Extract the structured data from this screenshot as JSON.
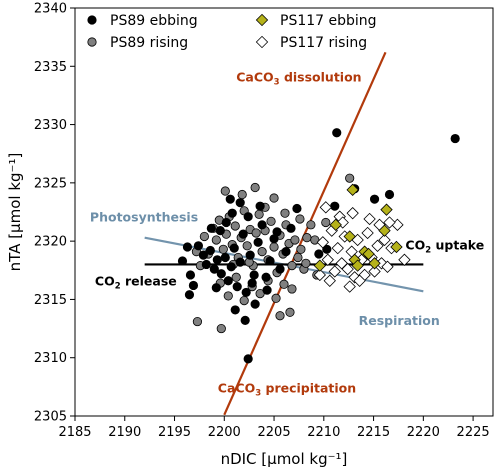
{
  "chart_data": {
    "type": "scatter",
    "xlabel": "nDIC [μmol kg⁻¹]",
    "ylabel": "nTA [μmol kg⁻¹]",
    "xlim": [
      2185,
      2227
    ],
    "ylim": [
      2305,
      2340
    ],
    "xticks": [
      2185,
      2190,
      2195,
      2200,
      2205,
      2210,
      2215,
      2220,
      2225
    ],
    "yticks": [
      2305,
      2310,
      2315,
      2320,
      2325,
      2330,
      2335,
      2340
    ],
    "grid": false,
    "legend": {
      "placement": "top-left",
      "entries": [
        "PS89 ebbing",
        "PS89 rising",
        "PS117 ebbing",
        "PS117 rising"
      ]
    },
    "series": [
      {
        "name": "PS89 ebbing",
        "marker": "circle",
        "color": "#000000",
        "points": [
          [
            2196.3,
            2319.5
          ],
          [
            2195.8,
            2318.3
          ],
          [
            2196.6,
            2317.1
          ],
          [
            2196.9,
            2316.2
          ],
          [
            2196.5,
            2315.4
          ],
          [
            2197.4,
            2319.6
          ],
          [
            2197.9,
            2318.8
          ],
          [
            2198.2,
            2318.0
          ],
          [
            2198.6,
            2319.2
          ],
          [
            2199.0,
            2317.6
          ],
          [
            2199.3,
            2318.4
          ],
          [
            2199.7,
            2317.2
          ],
          [
            2200.1,
            2318.6
          ],
          [
            2200.4,
            2316.6
          ],
          [
            2200.7,
            2317.8
          ],
          [
            2201.0,
            2319.4
          ],
          [
            2201.3,
            2316.1
          ],
          [
            2201.6,
            2318.2
          ],
          [
            2201.9,
            2320.6
          ],
          [
            2202.2,
            2315.6
          ],
          [
            2202.6,
            2318.8
          ],
          [
            2203.0,
            2317.1
          ],
          [
            2203.4,
            2319.9
          ],
          [
            2203.8,
            2321.4
          ],
          [
            2204.2,
            2316.9
          ],
          [
            2204.6,
            2318.3
          ],
          [
            2205.0,
            2320.2
          ],
          [
            2205.6,
            2317.6
          ],
          [
            2206.2,
            2319.1
          ],
          [
            2206.7,
            2321.1
          ],
          [
            2207.3,
            2322.8
          ],
          [
            2200.2,
            2321.6
          ],
          [
            2199.6,
            2320.9
          ],
          [
            2198.7,
            2321.1
          ],
          [
            2200.8,
            2322.4
          ],
          [
            2201.6,
            2323.3
          ],
          [
            2202.4,
            2322.1
          ],
          [
            2203.6,
            2323.0
          ],
          [
            2200.6,
            2323.6
          ],
          [
            2205.3,
            2320.8
          ],
          [
            2209.5,
            2318.9
          ],
          [
            2210.3,
            2319.3
          ],
          [
            2211.1,
            2323.0
          ],
          [
            2211.3,
            2329.3
          ],
          [
            2213.1,
            2324.5
          ],
          [
            2215.1,
            2323.6
          ],
          [
            2216.6,
            2324.0
          ],
          [
            2223.2,
            2328.8
          ],
          [
            2202.4,
            2309.9
          ],
          [
            2202.1,
            2313.2
          ],
          [
            2203.1,
            2314.6
          ],
          [
            2201.1,
            2314.1
          ],
          [
            2199.2,
            2316.0
          ],
          [
            2202.8,
            2316.4
          ],
          [
            2204.3,
            2315.8
          ]
        ]
      },
      {
        "name": "PS89 rising",
        "marker": "circle",
        "color": "#808080",
        "points": [
          [
            2198.9,
            2321.1
          ],
          [
            2199.2,
            2320.1
          ],
          [
            2199.5,
            2321.8
          ],
          [
            2199.9,
            2319.3
          ],
          [
            2200.2,
            2320.6
          ],
          [
            2200.5,
            2322.1
          ],
          [
            2200.8,
            2319.7
          ],
          [
            2201.1,
            2321.3
          ],
          [
            2201.4,
            2318.6
          ],
          [
            2201.7,
            2320.3
          ],
          [
            2202.0,
            2322.6
          ],
          [
            2202.3,
            2319.6
          ],
          [
            2202.6,
            2321.0
          ],
          [
            2202.9,
            2317.9
          ],
          [
            2203.2,
            2320.7
          ],
          [
            2203.5,
            2322.3
          ],
          [
            2203.8,
            2319.1
          ],
          [
            2204.1,
            2320.9
          ],
          [
            2204.4,
            2318.4
          ],
          [
            2204.7,
            2321.7
          ],
          [
            2205.0,
            2319.5
          ],
          [
            2205.3,
            2317.3
          ],
          [
            2205.6,
            2320.5
          ],
          [
            2205.9,
            2318.9
          ],
          [
            2206.2,
            2321.4
          ],
          [
            2206.5,
            2319.8
          ],
          [
            2206.8,
            2317.9
          ],
          [
            2207.1,
            2320.1
          ],
          [
            2207.4,
            2318.6
          ],
          [
            2207.7,
            2319.3
          ],
          [
            2208.0,
            2317.6
          ],
          [
            2208.3,
            2320.3
          ],
          [
            2198.4,
            2318.9
          ],
          [
            2198.0,
            2320.4
          ],
          [
            2197.6,
            2317.9
          ],
          [
            2197.2,
            2319.1
          ],
          [
            2199.6,
            2316.4
          ],
          [
            2200.4,
            2315.3
          ],
          [
            2201.2,
            2316.9
          ],
          [
            2202.0,
            2314.9
          ],
          [
            2202.8,
            2316.1
          ],
          [
            2203.6,
            2315.5
          ],
          [
            2204.4,
            2316.6
          ],
          [
            2205.2,
            2315.1
          ],
          [
            2206.0,
            2316.3
          ],
          [
            2206.8,
            2315.9
          ],
          [
            2205.6,
            2313.6
          ],
          [
            2206.6,
            2313.9
          ],
          [
            2199.7,
            2312.5
          ],
          [
            2197.3,
            2313.1
          ],
          [
            2200.1,
            2324.3
          ],
          [
            2201.8,
            2324.0
          ],
          [
            2203.1,
            2324.6
          ],
          [
            2204.1,
            2322.9
          ],
          [
            2205.0,
            2323.7
          ],
          [
            2206.1,
            2322.4
          ],
          [
            2207.6,
            2321.9
          ],
          [
            2208.7,
            2321.4
          ],
          [
            2208.2,
            2318.1
          ],
          [
            2209.1,
            2320.1
          ],
          [
            2209.3,
            2317.1
          ],
          [
            2212.6,
            2325.4
          ],
          [
            2210.2,
            2321.6
          ],
          [
            2200.9,
            2318.0
          ],
          [
            2202.5,
            2318.2
          ]
        ]
      },
      {
        "name": "PS117 ebbing",
        "marker": "diamond",
        "color": "#b5b21a",
        "points": [
          [
            2209.6,
            2317.9
          ],
          [
            2211.2,
            2321.4
          ],
          [
            2212.6,
            2320.4
          ],
          [
            2213.1,
            2318.4
          ],
          [
            2213.4,
            2317.9
          ],
          [
            2214.1,
            2319.1
          ],
          [
            2215.1,
            2318.1
          ],
          [
            2216.1,
            2320.9
          ],
          [
            2216.3,
            2322.7
          ],
          [
            2217.3,
            2319.5
          ],
          [
            2212.9,
            2324.4
          ],
          [
            2214.5,
            2318.9
          ]
        ]
      },
      {
        "name": "PS117 rising",
        "marker": "diamond",
        "color": "#ffffff",
        "points": [
          [
            2209.9,
            2319.9
          ],
          [
            2210.4,
            2318.4
          ],
          [
            2210.8,
            2320.9
          ],
          [
            2211.1,
            2317.4
          ],
          [
            2211.4,
            2319.4
          ],
          [
            2211.8,
            2318.1
          ],
          [
            2212.1,
            2320.4
          ],
          [
            2212.4,
            2317.6
          ],
          [
            2212.8,
            2319.1
          ],
          [
            2213.1,
            2316.9
          ],
          [
            2213.4,
            2320.1
          ],
          [
            2213.8,
            2318.4
          ],
          [
            2214.1,
            2317.1
          ],
          [
            2214.4,
            2320.7
          ],
          [
            2214.8,
            2318.6
          ],
          [
            2215.1,
            2317.4
          ],
          [
            2215.4,
            2319.6
          ],
          [
            2215.8,
            2318.1
          ],
          [
            2216.1,
            2320.1
          ],
          [
            2216.4,
            2317.8
          ],
          [
            2216.8,
            2319.4
          ],
          [
            2210.2,
            2322.9
          ],
          [
            2211.6,
            2322.1
          ],
          [
            2210.6,
            2316.6
          ],
          [
            2212.6,
            2316.1
          ],
          [
            2217.4,
            2321.4
          ],
          [
            2218.1,
            2318.4
          ],
          [
            2213.6,
            2316.6
          ],
          [
            2209.6,
            2317.1
          ],
          [
            2211.9,
            2321.6
          ],
          [
            2215.6,
            2321.4
          ],
          [
            2214.6,
            2321.9
          ],
          [
            2212.9,
            2322.4
          ],
          [
            2216.6,
            2321.6
          ]
        ]
      }
    ],
    "reference_lines": [
      {
        "name": "calcium-carbonate-line",
        "color": "#b23a0c",
        "from": [
          2200.0,
          2305.1
        ],
        "to": [
          2216.2,
          2336.2
        ]
      },
      {
        "name": "respiration-line",
        "color": "#7394ad",
        "from": [
          2192.0,
          2320.3
        ],
        "to": [
          2220.0,
          2315.7
        ]
      },
      {
        "name": "co2-flux-line",
        "color": "#000000",
        "from": [
          2192.0,
          2318.0
        ],
        "to": [
          2220.0,
          2318.0
        ]
      }
    ],
    "annotations": [
      {
        "name": "annotation-dissolution",
        "parts": [
          "CaCO",
          "3",
          " dissolution"
        ],
        "color": "#b23a0c",
        "anchor": [
          2207.5,
          2333.7
        ],
        "align": "middle"
      },
      {
        "name": "annotation-precipitation",
        "parts": [
          "CaCO",
          "3",
          " precipitation"
        ],
        "color": "#b23a0c",
        "anchor": [
          2206.3,
          2307.0
        ],
        "align": "middle"
      },
      {
        "name": "annotation-photosynthesis",
        "parts": [
          "Photosynthesis"
        ],
        "color": "#6d8fa9",
        "anchor": [
          2186.5,
          2321.7
        ],
        "align": "start"
      },
      {
        "name": "annotation-respiration",
        "parts": [
          "Respiration"
        ],
        "color": "#6d8fa9",
        "anchor": [
          2213.5,
          2312.8
        ],
        "align": "start"
      },
      {
        "name": "annotation-co2-release",
        "parts": [
          "CO",
          "2",
          " release"
        ],
        "color": "#000000",
        "anchor": [
          2187.0,
          2316.2
        ],
        "align": "start"
      },
      {
        "name": "annotation-co2-uptake",
        "parts": [
          "CO",
          "2",
          " uptake"
        ],
        "color": "#000000",
        "anchor": [
          2218.2,
          2319.3
        ],
        "align": "start"
      }
    ]
  }
}
